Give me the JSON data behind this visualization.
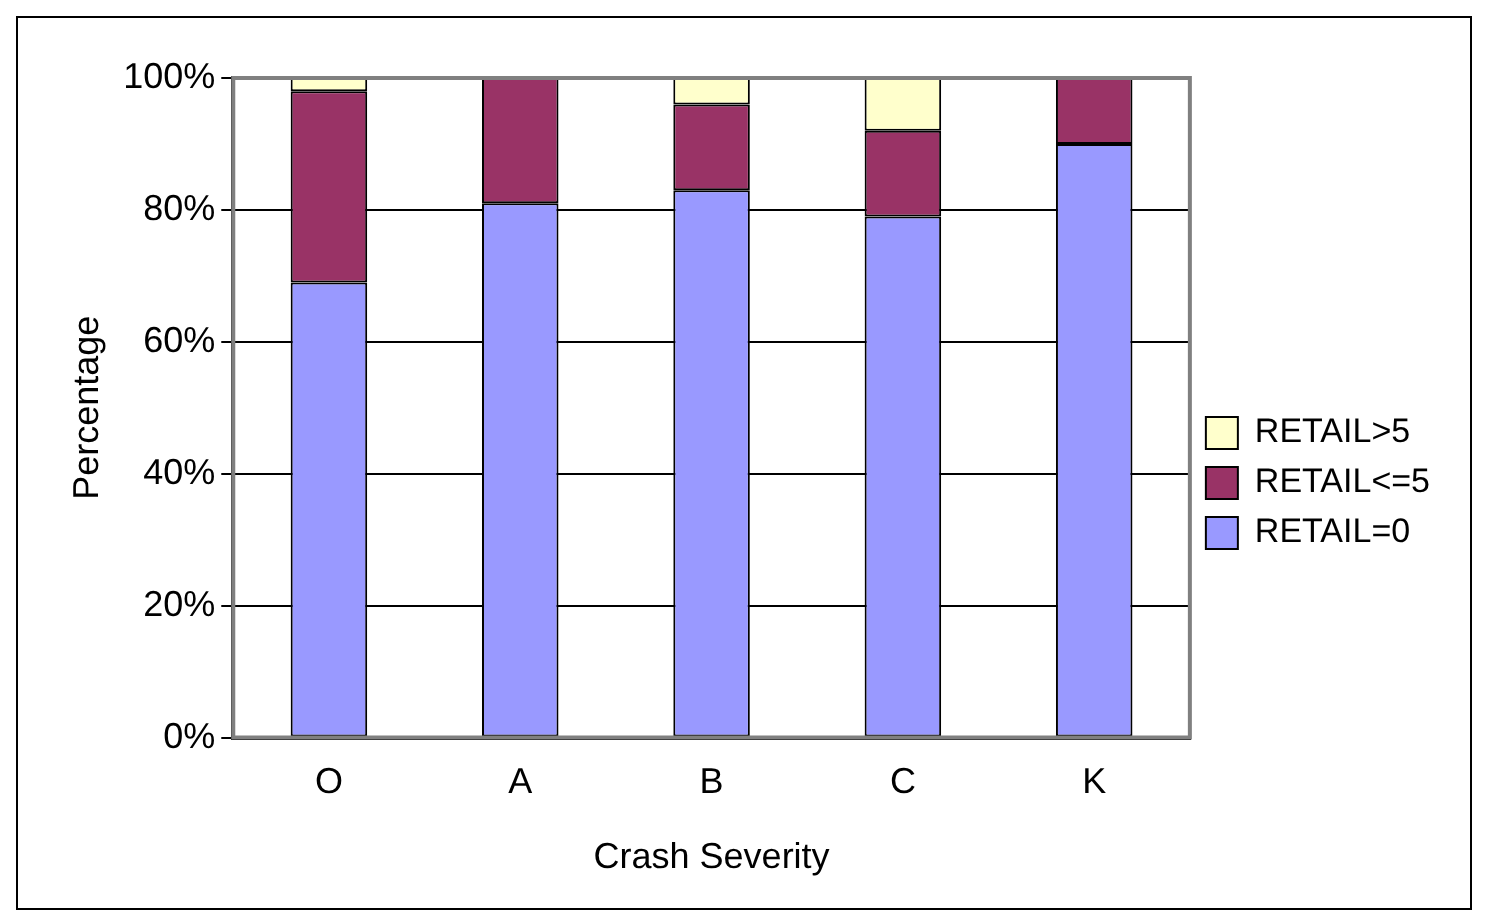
{
  "chart_data": {
    "type": "bar",
    "stacked": true,
    "xlabel": "Crash Severity",
    "ylabel": "Percentage",
    "categories": [
      "O",
      "A",
      "B",
      "C",
      "K"
    ],
    "series": [
      {
        "name": "RETAIL=0",
        "color": "#9999ff",
        "values": [
          69,
          81,
          83,
          79,
          90
        ]
      },
      {
        "name": "RETAIL<=5",
        "color": "#993366",
        "values": [
          29,
          19,
          13,
          13,
          10
        ]
      },
      {
        "name": "RETAIL>5",
        "color": "#ffffcc",
        "values": [
          2,
          0,
          4,
          8,
          0
        ]
      }
    ],
    "ylim": [
      0,
      100
    ],
    "yticks": [
      {
        "value": 0,
        "label": "0%"
      },
      {
        "value": 20,
        "label": "20%"
      },
      {
        "value": 40,
        "label": "40%"
      },
      {
        "value": 60,
        "label": "60%"
      },
      {
        "value": 80,
        "label": "80%"
      },
      {
        "value": 100,
        "label": "100%"
      }
    ],
    "grid": "y",
    "legend": "right"
  }
}
